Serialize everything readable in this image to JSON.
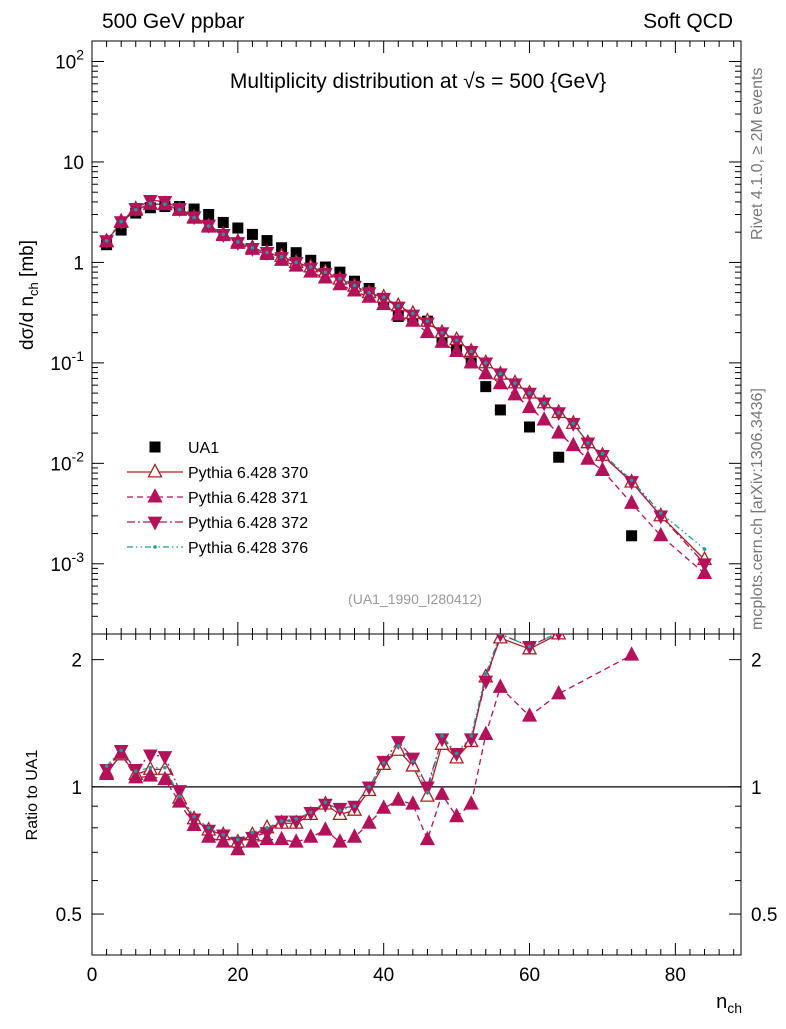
{
  "header": {
    "left": "500 GeV ppbar",
    "right": "Soft QCD"
  },
  "side": {
    "top": "Rivet 4.1.0, ≥ 2M events",
    "bottom": "mcplots.cern.ch [arXiv:1306.3436]"
  },
  "chart_data": {
    "type": "scatter",
    "title": "Multiplicity distribution at √s = 500 {GeV}",
    "analysis_label": "(UA1_1990_I280412)",
    "xlabel": "n_ch",
    "ylabel": "dσ/d n_ch [mb]",
    "ratio_ylabel": "Ratio to UA1",
    "xlim": [
      0,
      89
    ],
    "ylim": [
      0.0002,
      160
    ],
    "ratio_ylim": [
      0.4,
      2.3
    ],
    "x_ticks": [
      "0",
      "20",
      "40",
      "60",
      "80"
    ],
    "y_tick_labels": [
      "10⁻³",
      "10⁻²",
      "10⁻¹",
      "1",
      "10",
      "10²"
    ],
    "ratio_tick_labels": [
      "0.5",
      "1",
      "2"
    ],
    "ua1": {
      "name": "UA1",
      "x": [
        2,
        4,
        6,
        8,
        10,
        12,
        14,
        16,
        18,
        20,
        22,
        24,
        26,
        28,
        30,
        32,
        34,
        36,
        38,
        40,
        42,
        44,
        46,
        48,
        50,
        52,
        54,
        56,
        60,
        64,
        74
      ],
      "y": [
        1.5,
        2.1,
        3.1,
        3.5,
        3.6,
        3.6,
        3.4,
        3.0,
        2.5,
        2.2,
        1.9,
        1.65,
        1.4,
        1.25,
        1.05,
        0.9,
        0.8,
        0.65,
        0.55,
        0.42,
        0.29,
        0.27,
        0.26,
        0.17,
        0.14,
        0.1,
        0.058,
        0.034,
        0.023,
        0.0115,
        0.0019
      ]
    },
    "series": [
      {
        "name": "Pythia 6.428 370",
        "color": "#aa2020",
        "x": [
          2,
          4,
          6,
          8,
          10,
          12,
          14,
          16,
          18,
          20,
          22,
          24,
          26,
          28,
          30,
          32,
          34,
          36,
          38,
          40,
          42,
          44,
          46,
          48,
          50,
          52,
          54,
          56,
          58,
          60,
          62,
          64,
          66,
          68,
          70,
          74,
          78,
          84
        ],
        "y": [
          1.62,
          2.5,
          3.3,
          3.8,
          3.8,
          3.35,
          2.8,
          2.3,
          1.9,
          1.6,
          1.4,
          1.25,
          1.15,
          1.0,
          0.9,
          0.8,
          0.68,
          0.58,
          0.5,
          0.45,
          0.37,
          0.31,
          0.26,
          0.2,
          0.17,
          0.13,
          0.1,
          0.077,
          0.063,
          0.05,
          0.04,
          0.032,
          0.025,
          0.016,
          0.012,
          0.0065,
          0.003,
          0.0011
        ],
        "ratio_x": [
          2,
          4,
          6,
          8,
          10,
          12,
          14,
          16,
          18,
          20,
          22,
          24,
          26,
          28,
          30,
          32,
          34,
          36,
          38,
          40,
          42,
          44,
          46,
          48,
          50,
          52,
          54,
          56,
          60,
          64
        ],
        "ratio": [
          1.08,
          1.19,
          1.07,
          1.1,
          1.1,
          0.94,
          0.84,
          0.79,
          0.77,
          0.74,
          0.77,
          0.8,
          0.82,
          0.82,
          0.86,
          0.91,
          0.86,
          0.88,
          0.98,
          1.13,
          1.22,
          1.12,
          0.95,
          1.26,
          1.17,
          1.28,
          1.82,
          2.25,
          2.12,
          2.3
        ],
        "marker": "open-triangle-up",
        "line": "solid"
      },
      {
        "name": "Pythia 6.428 371",
        "color": "#b3125a",
        "x": [
          2,
          4,
          6,
          8,
          10,
          12,
          14,
          16,
          18,
          20,
          22,
          24,
          26,
          28,
          30,
          32,
          34,
          36,
          38,
          40,
          42,
          44,
          46,
          48,
          50,
          52,
          54,
          56,
          58,
          60,
          62,
          64,
          66,
          68,
          70,
          74,
          78,
          84
        ],
        "y": [
          1.6,
          2.55,
          3.4,
          3.8,
          3.75,
          3.3,
          2.75,
          2.25,
          1.85,
          1.55,
          1.35,
          1.2,
          1.05,
          0.92,
          0.8,
          0.7,
          0.6,
          0.52,
          0.45,
          0.38,
          0.3,
          0.26,
          0.2,
          0.16,
          0.13,
          0.1,
          0.078,
          0.062,
          0.048,
          0.036,
          0.027,
          0.02,
          0.015,
          0.011,
          0.0085,
          0.004,
          0.0019,
          0.0008
        ],
        "ratio_x": [
          2,
          4,
          6,
          8,
          10,
          12,
          14,
          16,
          18,
          20,
          22,
          24,
          26,
          28,
          30,
          32,
          34,
          36,
          38,
          40,
          42,
          44,
          46,
          48,
          50,
          52,
          54,
          56,
          60,
          64,
          74
        ],
        "ratio": [
          1.07,
          1.2,
          1.05,
          1.06,
          1.04,
          0.92,
          0.81,
          0.76,
          0.74,
          0.71,
          0.74,
          0.75,
          0.75,
          0.74,
          0.76,
          0.79,
          0.74,
          0.76,
          0.82,
          0.89,
          0.93,
          0.91,
          0.75,
          0.96,
          0.85,
          0.91,
          1.33,
          1.72,
          1.47,
          1.66,
          2.05
        ],
        "marker": "filled-triangle-up",
        "line": "dashed"
      },
      {
        "name": "Pythia 6.428 372",
        "color": "#b3125a",
        "x": [
          2,
          4,
          6,
          8,
          10,
          12,
          14,
          16,
          18,
          20,
          22,
          24,
          26,
          28,
          30,
          32,
          34,
          36,
          38,
          40,
          42,
          44,
          46,
          48,
          50,
          52,
          54,
          56,
          58,
          60,
          62,
          64,
          66,
          68,
          70,
          74,
          78,
          84
        ],
        "y": [
          1.65,
          2.55,
          3.45,
          4.15,
          4.05,
          3.45,
          2.85,
          2.35,
          1.9,
          1.58,
          1.38,
          1.26,
          1.12,
          1.0,
          0.88,
          0.78,
          0.68,
          0.58,
          0.5,
          0.44,
          0.36,
          0.3,
          0.25,
          0.2,
          0.165,
          0.13,
          0.1,
          0.078,
          0.062,
          0.05,
          0.04,
          0.032,
          0.025,
          0.016,
          0.012,
          0.0066,
          0.003,
          0.001
        ],
        "ratio_x": [
          2,
          4,
          6,
          8,
          10,
          12,
          14,
          16,
          18,
          20,
          22,
          24,
          26,
          28,
          30,
          32,
          34,
          36,
          38,
          40,
          42,
          44,
          46,
          48,
          50,
          52,
          54,
          56,
          60,
          64
        ],
        "ratio": [
          1.1,
          1.22,
          1.1,
          1.19,
          1.18,
          0.98,
          0.84,
          0.79,
          0.77,
          0.74,
          0.76,
          0.78,
          0.83,
          0.83,
          0.87,
          0.91,
          0.89,
          0.9,
          1.0,
          1.15,
          1.28,
          1.17,
          1.0,
          1.3,
          1.2,
          1.3,
          1.78,
          2.3,
          2.15,
          2.32
        ],
        "marker": "filled-triangle-down",
        "line": "dash-dot"
      },
      {
        "name": "Pythia 6.428 376",
        "color": "#1b9e9a",
        "x": [
          2,
          4,
          6,
          8,
          10,
          12,
          14,
          16,
          18,
          20,
          22,
          24,
          26,
          28,
          30,
          32,
          34,
          36,
          38,
          40,
          42,
          44,
          46,
          48,
          50,
          52,
          54,
          56,
          58,
          60,
          62,
          64,
          66,
          68,
          70,
          74,
          78,
          84
        ],
        "y": [
          1.64,
          2.55,
          3.35,
          3.85,
          3.8,
          3.35,
          2.8,
          2.3,
          1.9,
          1.6,
          1.4,
          1.26,
          1.14,
          1.0,
          0.9,
          0.8,
          0.69,
          0.59,
          0.5,
          0.45,
          0.37,
          0.31,
          0.26,
          0.2,
          0.168,
          0.13,
          0.1,
          0.078,
          0.063,
          0.05,
          0.04,
          0.032,
          0.025,
          0.016,
          0.0125,
          0.0068,
          0.0032,
          0.0014
        ],
        "ratio_x": [
          2,
          4,
          6,
          8,
          10,
          12,
          14,
          16,
          18,
          20,
          22,
          24,
          26,
          28,
          30,
          32,
          34,
          36,
          38,
          40,
          42,
          44,
          46,
          48,
          50,
          52,
          54,
          56,
          60,
          64
        ],
        "ratio": [
          1.12,
          1.22,
          1.09,
          1.11,
          1.11,
          0.95,
          0.85,
          0.8,
          0.77,
          0.75,
          0.78,
          0.8,
          0.83,
          0.84,
          0.87,
          0.92,
          0.88,
          0.9,
          1.0,
          1.14,
          1.25,
          1.15,
          0.97,
          1.32,
          1.2,
          1.32,
          1.85,
          2.3,
          2.15,
          2.32
        ],
        "marker": "dot",
        "line": "dash-dot-dot"
      }
    ]
  }
}
